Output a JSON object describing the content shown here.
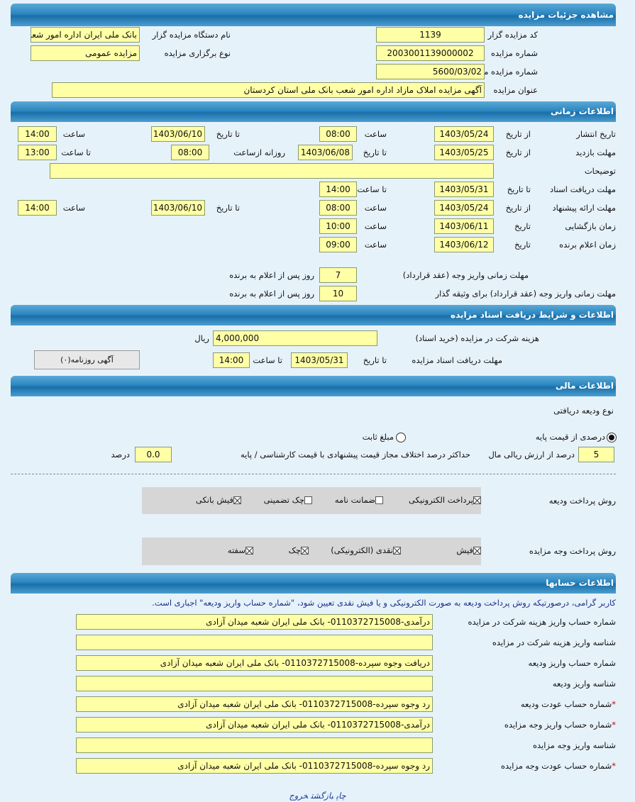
{
  "sections": {
    "details": "مشاهده جزئیات مزایده",
    "timing": "اطلاعات زمانی",
    "documents": "اطلاعات و شرایط دریافت اسناد مزایده",
    "financial": "اطلاعات مالی",
    "accounts": "اطلاعات حسابها"
  },
  "details": {
    "code_label": "کد مزایده گزار",
    "code": "1139",
    "org_label": "نام دستگاه مزایده گزار",
    "org": "بانک ملی ایران اداره امور شعب",
    "number_label": "شماره مزایده",
    "number": "2003001139000002",
    "type_label": "نوع برگزاری مزایده",
    "type": "مزایده عمومی",
    "ref_label": "شماره مزایده مرجع",
    "ref": "5600/03/02",
    "title_label": "عنوان مزایده",
    "title": "آگهی مزایده املاک مازاد اداره امور شعب بانک ملی استان کردستان"
  },
  "timing": {
    "from_date": "از تاریخ",
    "to_date": "تا تاریخ",
    "time": "ساعت",
    "to_time": "تا ساعت",
    "date": "تاریخ",
    "daily_from": "روزانه ازساعت",
    "publish": {
      "label": "تاریخ انتشار",
      "from": "1403/05/24",
      "from_time": "08:00",
      "to": "1403/06/10",
      "to_time": "14:00"
    },
    "visit": {
      "label": "مهلت بازدید",
      "from": "1403/05/25",
      "to": "1403/06/08",
      "daily_from": "08:00",
      "to_time": "13:00"
    },
    "notes": {
      "label": "توضیحات",
      "value": ""
    },
    "docs": {
      "label": "مهلت دریافت اسناد",
      "to": "1403/05/31",
      "to_time": "14:00"
    },
    "offer": {
      "label": "مهلت ارائه پیشنهاد",
      "from": "1403/05/24",
      "from_time": "08:00",
      "to": "1403/06/10",
      "to_time": "14:00"
    },
    "opening": {
      "label": "زمان بازگشایی",
      "date": "1403/06/11",
      "time": "10:00"
    },
    "winner": {
      "label": "زمان اعلام برنده",
      "date": "1403/06/12",
      "time": "09:00"
    },
    "payment": {
      "label": "مهلت زمانی واریز وجه (عقد قرارداد)",
      "days": "7",
      "suffix": "روز پس از اعلام به برنده"
    },
    "payment_collateral": {
      "label": "مهلت زمانی واریز وجه (عقد قرارداد) برای وثیقه گذار",
      "days": "10",
      "suffix": "روز پس از اعلام به برنده"
    }
  },
  "documents": {
    "fee_label": "هزینه شرکت در مزایده (خرید اسناد)",
    "fee": "4,000,000",
    "currency": "ریال",
    "deadline_label": "مهلت دریافت اسناد مزایده",
    "to_date_label": "تا تاریخ",
    "to_date": "1403/05/31",
    "to_time_label": "تا ساعت",
    "to_time": "14:00",
    "newspaper_button": "آگهی روزنامه(۰)"
  },
  "financial": {
    "deposit_type_label": "نوع ودیعه دریافتی",
    "radio_percent": "درصدی از قیمت پایه",
    "radio_fixed": "مبلغ ثابت",
    "selected": "percent",
    "percent": "5",
    "percent_suffix": "درصد از ارزش ریالی مال",
    "max_diff_label": "حداکثر درصد اختلاف مجاز قیمت پیشنهادی با قیمت کارشناسی / پایه",
    "max_diff": "0.0",
    "max_diff_unit": "درصد",
    "deposit_methods_label": "روش پرداخت ودیعه",
    "deposit_methods": [
      {
        "label": "پرداخت الکترونیکی",
        "checked": true
      },
      {
        "label": "ضمانت نامه",
        "checked": false
      },
      {
        "label": "چک تضمینی",
        "checked": false
      },
      {
        "label": "فیش بانکی",
        "checked": true
      }
    ],
    "payment_methods_label": "روش پرداخت وجه مزایده",
    "payment_methods": [
      {
        "label": "فیش",
        "checked": true
      },
      {
        "label": "نقدی (الکترونیکی)",
        "checked": true
      },
      {
        "label": "چک",
        "checked": true
      },
      {
        "label": "سفته",
        "checked": true
      }
    ]
  },
  "accounts": {
    "notice": "کاربر گرامی، درصورتیکه روش پرداخت ودیعه به صورت الکترونیکی و یا فیش نقدی تعیین شود، \"شماره حساب واریز ودیعه\" اجباری است.",
    "rows": [
      {
        "label": "شماره حساب واریز هزینه شرکت در مزایده",
        "value": "درآمدی-0110372715008- بانک ملی ایران شعبه میدان آزادی",
        "required": false
      },
      {
        "label": "شناسه واریز هزینه شرکت در مزایده",
        "value": "",
        "required": false
      },
      {
        "label": "شماره حساب واریز ودیعه",
        "value": "دریافت وجوه سپرده-0110372715008- بانک ملی ایران شعبه میدان آزادی",
        "required": false
      },
      {
        "label": "شناسه واریز ودیعه",
        "value": "",
        "required": false
      },
      {
        "label": "شماره حساب عودت ودیعه",
        "value": "رد وجوه سپرده-0110372715008- بانک ملی ایران شعبه میدان آزادی",
        "required": true
      },
      {
        "label": "شماره حساب واریز وجه مزایده",
        "value": "درآمدی-0110372715008- بانک ملی ایران شعبه میدان آزادی",
        "required": true
      },
      {
        "label": "شناسه واریز وجه مزایده",
        "value": "",
        "required": false
      },
      {
        "label": "شماره حساب عودت وجه مزایده",
        "value": "رد وجوه سپرده-0110372715008- بانک ملی ایران شعبه میدان آزادی",
        "required": true
      }
    ],
    "required_mark": "*"
  },
  "footer": {
    "print": "چاپ",
    "back": "بازگشت",
    "exit": "خروج"
  }
}
